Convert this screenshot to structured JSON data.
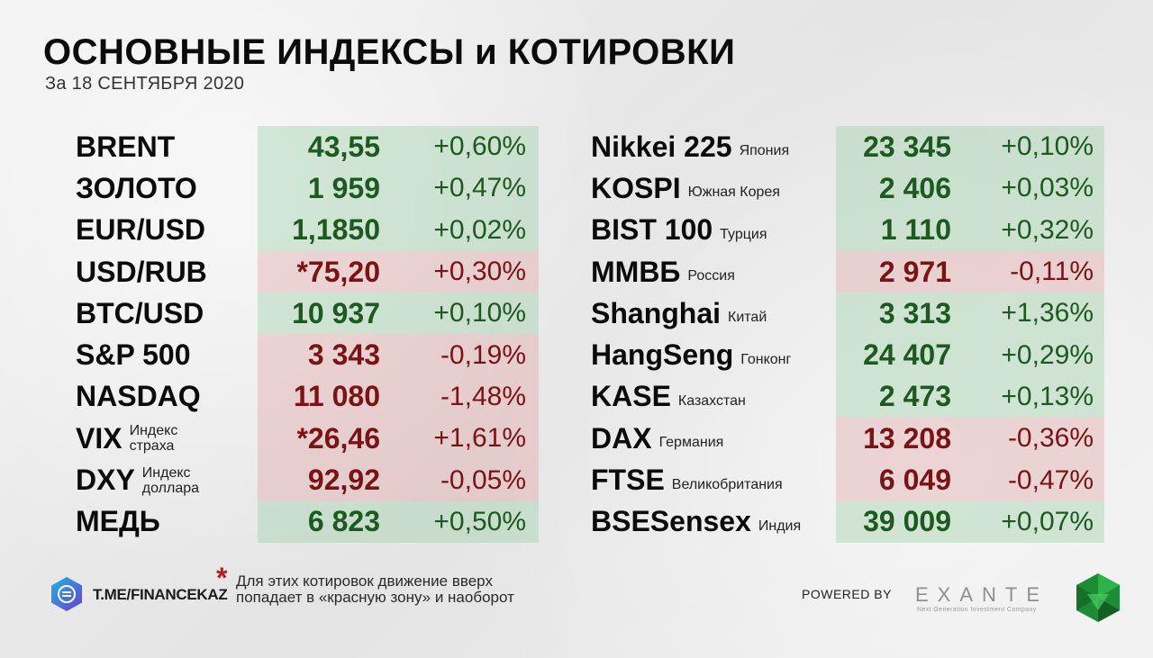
{
  "header": {
    "title": "ОСНОВНЫЕ ИНДЕКСЫ и КОТИРОВКИ",
    "subtitle": "За 18 СЕНТЯБРЯ 2020"
  },
  "left": [
    {
      "name": "BRENT",
      "value": "43,55",
      "change": "+0,60%",
      "trend": "green"
    },
    {
      "name": "ЗОЛОТО",
      "value": "1 959",
      "change": "+0,47%",
      "trend": "green"
    },
    {
      "name": "EUR/USD",
      "value": "1,1850",
      "change": "+0,02%",
      "trend": "green"
    },
    {
      "name": "USD/RUB",
      "value": "*75,20",
      "change": "+0,30%",
      "trend": "red"
    },
    {
      "name": "BTC/USD",
      "value": "10 937",
      "change": "+0,10%",
      "trend": "green"
    },
    {
      "name": "S&P 500",
      "value": "3 343",
      "change": "-0,19%",
      "trend": "red"
    },
    {
      "name": "NASDAQ",
      "value": "11 080",
      "change": "-1,48%",
      "trend": "red"
    },
    {
      "name": "VIX",
      "note_line1": "Индекс",
      "note_line2": "страха",
      "value": "*26,46",
      "change": "+1,61%",
      "trend": "red"
    },
    {
      "name": "DXY",
      "note_line1": "Индекс",
      "note_line2": "доллара",
      "value": "92,92",
      "change": "-0,05%",
      "trend": "red"
    },
    {
      "name": "МЕДЬ",
      "value": "6 823",
      "change": "+0,50%",
      "trend": "green"
    }
  ],
  "right": [
    {
      "name": "Nikkei 225",
      "country": "Япония",
      "value": "23 345",
      "change": "+0,10%",
      "trend": "green"
    },
    {
      "name": "KOSPI",
      "country": "Южная Корея",
      "value": "2 406",
      "change": "+0,03%",
      "trend": "green"
    },
    {
      "name": "BIST 100",
      "country": "Турция",
      "value": "1 110",
      "change": "+0,32%",
      "trend": "green"
    },
    {
      "name": "ММВБ",
      "country": "Россия",
      "value": "2 971",
      "change": "-0,11%",
      "trend": "red"
    },
    {
      "name": "Shanghai",
      "country": "Китай",
      "value": "3 313",
      "change": "+1,36%",
      "trend": "green"
    },
    {
      "name": "HangSeng",
      "country": "Гонконг",
      "value": "24 407",
      "change": "+0,29%",
      "trend": "green"
    },
    {
      "name": "KASE",
      "country": "Казахстан",
      "value": "2 473",
      "change": "+0,13%",
      "trend": "green"
    },
    {
      "name": "DAX",
      "country": "Германия",
      "value": "13 208",
      "change": "-0,36%",
      "trend": "red"
    },
    {
      "name": "FTSE",
      "country": "Великобритания",
      "value": "6 049",
      "change": "-0,47%",
      "trend": "red"
    },
    {
      "name": "BSESensex",
      "country": "Индия",
      "value": "39 009",
      "change": "+0,07%",
      "trend": "green"
    }
  ],
  "footer": {
    "telegram": "T.ME/FINANCEKAZ",
    "asterisk": "*",
    "note": "Для этих котировок движение вверх попадает в «красную зону» и наоборот",
    "powered_by": "POWERED BY",
    "brand": "EXANTE",
    "brand_tagline": "Next Generation Investment Company"
  },
  "colors": {
    "positive": "#1d5a1f",
    "negative": "#7a1414",
    "positive_bg": "#c8e3cb",
    "negative_bg": "#ecc9c9",
    "asterisk": "#b21e1e"
  }
}
